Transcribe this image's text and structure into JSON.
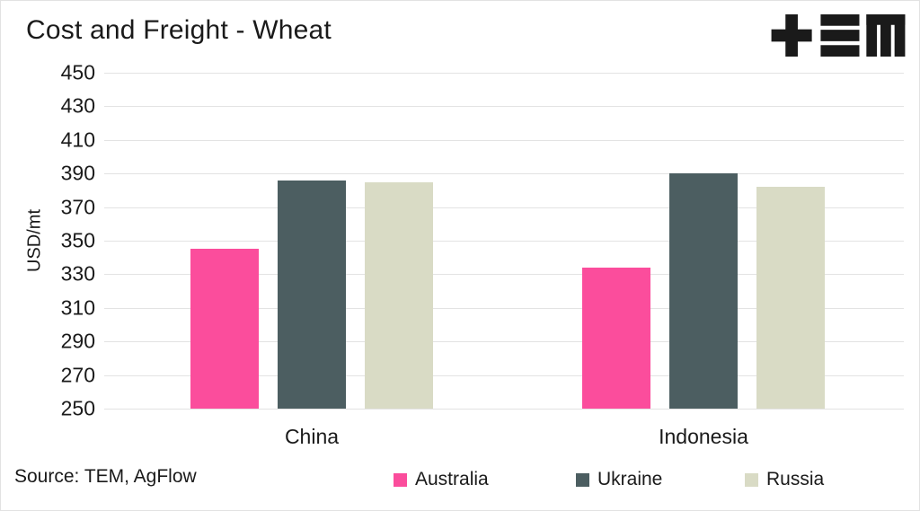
{
  "header": {
    "title": "Cost and Freight - Wheat",
    "logo_name": "TEM"
  },
  "footer": {
    "source": "Source: TEM, AgFlow"
  },
  "chart_data": {
    "type": "bar",
    "title": "Cost and Freight - Wheat",
    "categories": [
      "China",
      "Indonesia"
    ],
    "series": [
      {
        "name": "Australia",
        "color": "#FB4D9C",
        "values": [
          345,
          334
        ]
      },
      {
        "name": "Ukraine",
        "color": "#4C5E61",
        "values": [
          386,
          390
        ]
      },
      {
        "name": "Russia",
        "color": "#D9DBC5",
        "values": [
          385,
          382
        ]
      }
    ],
    "xlabel": "",
    "ylabel": "USD/mt",
    "ylim": [
      250,
      450
    ],
    "yticks": [
      250,
      270,
      290,
      310,
      330,
      350,
      370,
      390,
      410,
      430,
      450
    ],
    "grid": "horizontal",
    "legend_position": "bottom"
  },
  "colors": {
    "background": "#ffffff",
    "border": "#e2e2e2",
    "gridline": "#e3e3e3",
    "text": "#1a1a1a",
    "logo": "#1a1a1a"
  }
}
